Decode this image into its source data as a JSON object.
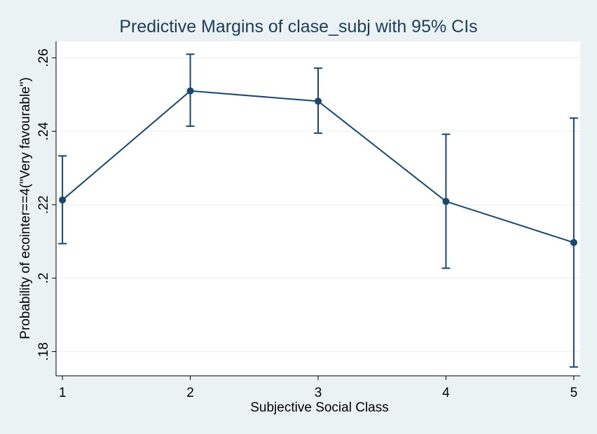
{
  "chart_data": {
    "type": "line",
    "title": "Predictive Margins of clase_subj with 95% CIs",
    "xlabel": "Subjective Social Class",
    "ylabel": "Probability of ecointer==4(\"Very favourable\")",
    "x": [
      1,
      2,
      3,
      4,
      5
    ],
    "xticks": [
      "1",
      "2",
      "3",
      "4",
      "5"
    ],
    "xlim": [
      0.95,
      5.05
    ],
    "yticks": [
      0.18,
      0.2,
      0.22,
      0.24,
      0.26
    ],
    "ytick_labels": [
      ".18",
      ".2",
      ".22",
      ".24",
      ".26"
    ],
    "ylim": [
      0.1734,
      0.2645
    ],
    "grid": true,
    "series": [
      {
        "values": [
          0.2213,
          0.251,
          0.2482,
          0.2209,
          0.2097
        ],
        "ci_low": [
          0.2094,
          0.2414,
          0.2395,
          0.2027,
          0.1758
        ],
        "ci_high": [
          0.2333,
          0.261,
          0.2572,
          0.2392,
          0.2436
        ]
      }
    ],
    "colors": {
      "series": "#1a476f",
      "background": "#eaf2f3",
      "plot_area": "#ffffff",
      "title": "#1e3c5a"
    }
  }
}
